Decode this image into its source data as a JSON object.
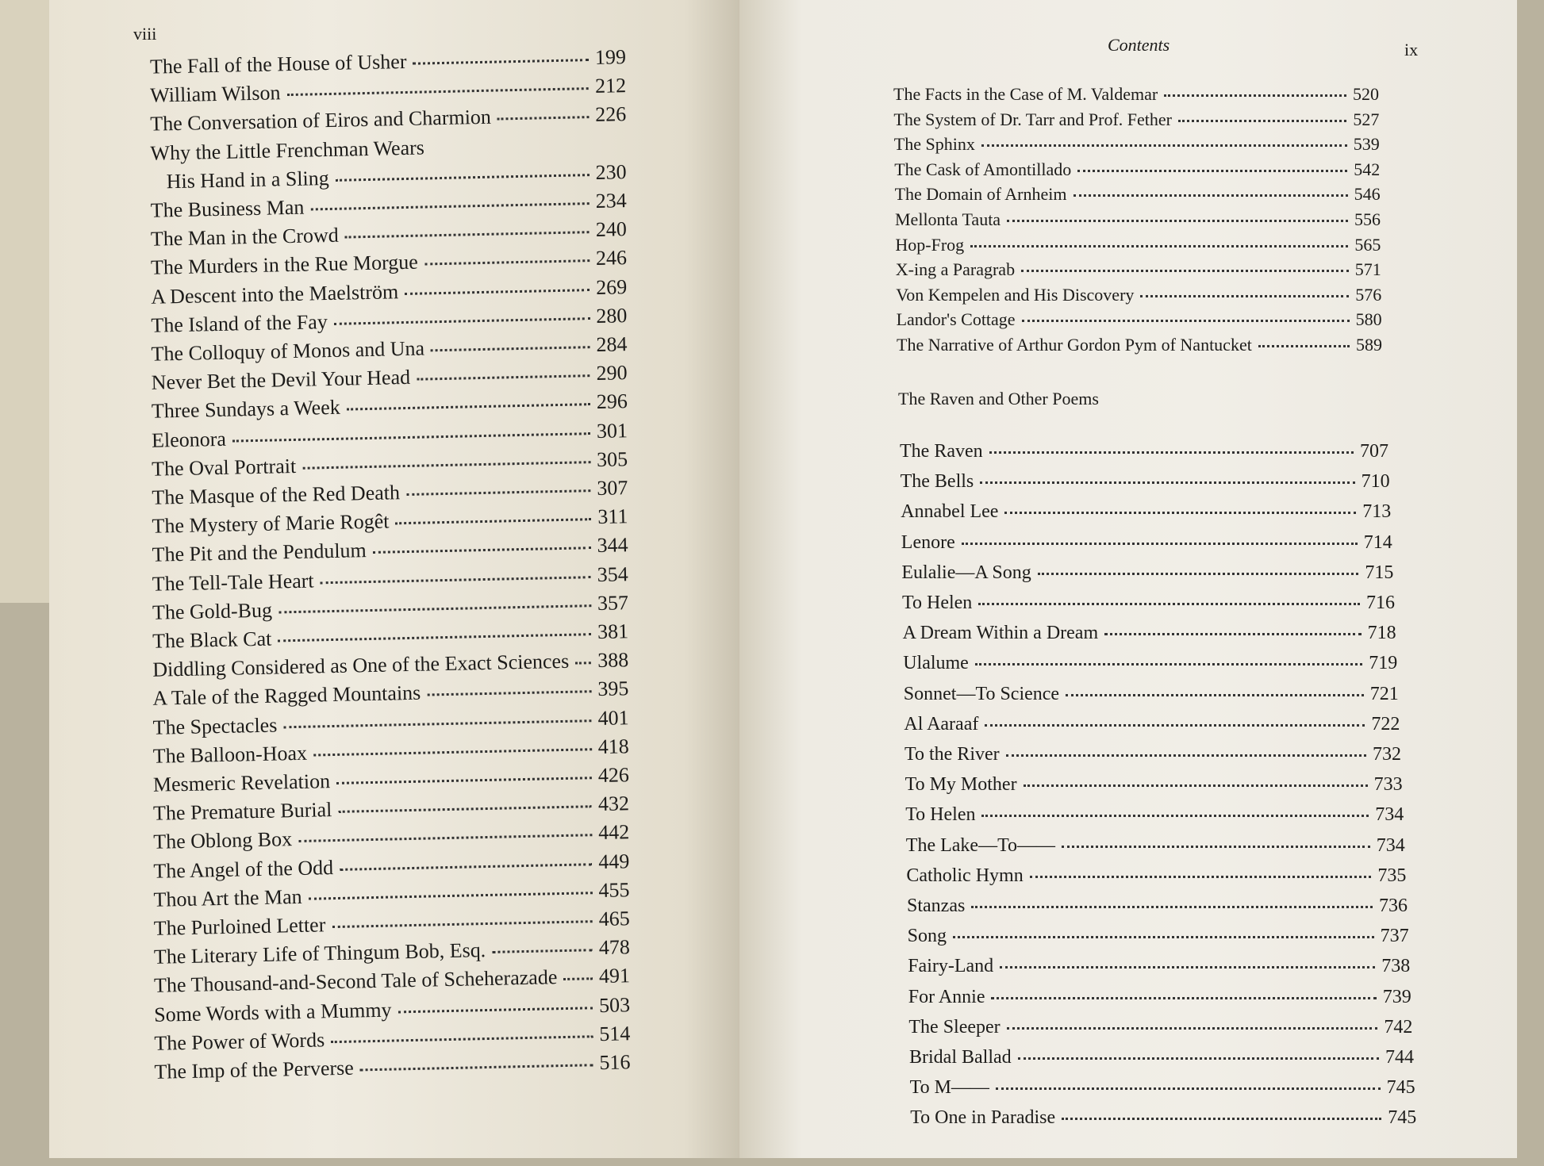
{
  "left_page": {
    "page_number": "viii",
    "entries": [
      {
        "title": "The Fall of the House of Usher",
        "page": "199"
      },
      {
        "title": "William Wilson",
        "page": "212"
      },
      {
        "title": "The Conversation of Eiros and Charmion",
        "page": "226"
      },
      {
        "title": "Why the Little Frenchman Wears",
        "title_cont": "His Hand in a Sling",
        "page": "230"
      },
      {
        "title": "The Business Man",
        "page": "234"
      },
      {
        "title": "The Man in the Crowd",
        "page": "240"
      },
      {
        "title": "The Murders in the Rue Morgue",
        "page": "246"
      },
      {
        "title": "A Descent into the Maelström",
        "page": "269"
      },
      {
        "title": "The Island of the Fay",
        "page": "280"
      },
      {
        "title": "The Colloquy of Monos and Una",
        "page": "284"
      },
      {
        "title": "Never Bet the Devil Your Head",
        "page": "290"
      },
      {
        "title": "Three Sundays a Week",
        "page": "296"
      },
      {
        "title": "Eleonora",
        "page": "301"
      },
      {
        "title": "The Oval Portrait",
        "page": "305"
      },
      {
        "title": "The Masque of the Red Death",
        "page": "307"
      },
      {
        "title": "The Mystery of Marie Rogêt",
        "page": "311"
      },
      {
        "title": "The Pit and the Pendulum",
        "page": "344"
      },
      {
        "title": "The Tell-Tale Heart",
        "page": "354"
      },
      {
        "title": "The Gold-Bug",
        "page": "357"
      },
      {
        "title": "The Black Cat",
        "page": "381"
      },
      {
        "title": "Diddling Considered as One of the Exact Sciences",
        "page": "388"
      },
      {
        "title": "A Tale of the Ragged Mountains",
        "page": "395"
      },
      {
        "title": "The Spectacles",
        "page": "401"
      },
      {
        "title": "The Balloon-Hoax",
        "page": "418"
      },
      {
        "title": "Mesmeric Revelation",
        "page": "426"
      },
      {
        "title": "The Premature Burial",
        "page": "432"
      },
      {
        "title": "The Oblong Box",
        "page": "442"
      },
      {
        "title": "The Angel of the Odd",
        "page": "449"
      },
      {
        "title": "Thou Art the Man",
        "page": "455"
      },
      {
        "title": "The Purloined Letter",
        "page": "465"
      },
      {
        "title": "The Literary Life of Thingum Bob, Esq.",
        "page": "478"
      },
      {
        "title": "The Thousand-and-Second Tale of Scheherazade",
        "page": "491"
      },
      {
        "title": "Some Words with a Mummy",
        "page": "503"
      },
      {
        "title": "The Power of Words",
        "page": "514"
      },
      {
        "title": "The Imp of the Perverse",
        "page": "516"
      }
    ]
  },
  "right_page": {
    "header": "Contents",
    "page_number": "ix",
    "entries": [
      {
        "title": "The Facts in the Case of M. Valdemar",
        "page": "520"
      },
      {
        "title": "The System of Dr. Tarr and Prof. Fether",
        "page": "527"
      },
      {
        "title": "The Sphinx",
        "page": "539"
      },
      {
        "title": "The Cask of Amontillado",
        "page": "542"
      },
      {
        "title": "The Domain of Arnheim",
        "page": "546"
      },
      {
        "title": "Mellonta Tauta",
        "page": "556"
      },
      {
        "title": "Hop-Frog",
        "page": "565"
      },
      {
        "title": "X-ing a Paragrab",
        "page": "571"
      },
      {
        "title": "Von Kempelen and His Discovery",
        "page": "576"
      },
      {
        "title": "Landor's Cottage",
        "page": "580"
      },
      {
        "title": "The Narrative of Arthur Gordon Pym of Nantucket",
        "page": "589"
      }
    ],
    "section": "The Raven and Other Poems",
    "poems": [
      {
        "title": "The Raven",
        "page": "707"
      },
      {
        "title": "The Bells",
        "page": "710"
      },
      {
        "title": "Annabel Lee",
        "page": "713"
      },
      {
        "title": "Lenore",
        "page": "714"
      },
      {
        "title": "Eulalie—A Song",
        "page": "715"
      },
      {
        "title": "To Helen",
        "page": "716"
      },
      {
        "title": "A Dream Within a Dream",
        "page": "718"
      },
      {
        "title": "Ulalume",
        "page": "719"
      },
      {
        "title": "Sonnet—To Science",
        "page": "721"
      },
      {
        "title": "Al Aaraaf",
        "page": "722"
      },
      {
        "title": "To the River",
        "page": "732"
      },
      {
        "title": "To My Mother",
        "page": "733"
      },
      {
        "title": "To Helen",
        "page": "734"
      },
      {
        "title": "The Lake—To——",
        "page": "734"
      },
      {
        "title": "Catholic Hymn",
        "page": "735"
      },
      {
        "title": "Stanzas",
        "page": "736"
      },
      {
        "title": "Song",
        "page": "737"
      },
      {
        "title": "Fairy-Land",
        "page": "738"
      },
      {
        "title": "For Annie",
        "page": "739"
      },
      {
        "title": "The Sleeper",
        "page": "742"
      },
      {
        "title": "Bridal Ballad",
        "page": "744"
      },
      {
        "title": "To M——",
        "page": "745"
      },
      {
        "title": "To One in Paradise",
        "page": "745"
      }
    ]
  }
}
